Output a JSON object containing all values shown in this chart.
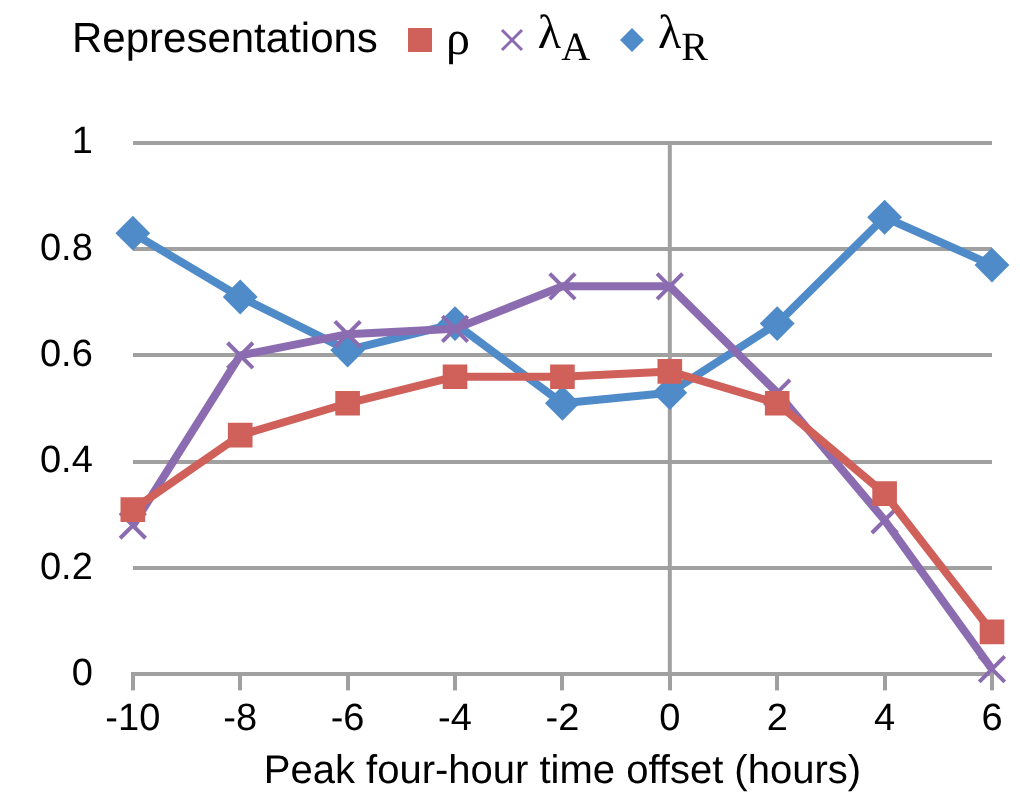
{
  "chart_data": {
    "type": "line",
    "xlabel": "Peak four-hour time offset (hours)",
    "legend_title": "Representations",
    "legend": "top",
    "x": [
      -10,
      -8,
      -6,
      -4,
      -2,
      0,
      2,
      4,
      6
    ],
    "xlim": [
      -10,
      6
    ],
    "xticks": [
      -10,
      -8,
      -6,
      -4,
      -2,
      0,
      2,
      4,
      6
    ],
    "ylim": [
      0,
      1
    ],
    "yticks": [
      0,
      0.2,
      0.4,
      0.6,
      0.8,
      1
    ],
    "grid": "y",
    "ref_lines": [
      {
        "axis": "x",
        "value": 0,
        "color": "#a0a0a0"
      }
    ],
    "series": [
      {
        "name": "ρ",
        "color": "#d0605a",
        "marker": "square",
        "values": [
          0.31,
          0.45,
          0.51,
          0.56,
          0.56,
          0.57,
          0.51,
          0.34,
          0.08
        ]
      },
      {
        "name": "λ$_{A}$",
        "color": "#8c6cb0",
        "marker": "cross",
        "values": [
          0.28,
          0.6,
          0.64,
          0.65,
          0.73,
          0.73,
          0.53,
          0.29,
          0.01
        ]
      },
      {
        "name": "λ$_{R}$",
        "color": "#4f8bc9",
        "marker": "diamond",
        "values": [
          0.83,
          0.71,
          0.61,
          0.66,
          0.51,
          0.53,
          0.66,
          0.86,
          0.77
        ]
      }
    ]
  }
}
